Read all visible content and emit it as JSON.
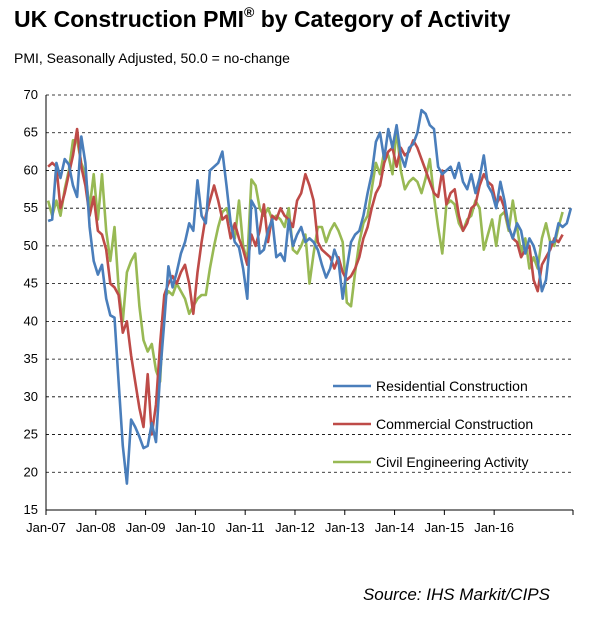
{
  "title": "UK Construction PMI",
  "title_sup": "®",
  "title_rest": " by Category of Activity",
  "subtitle": "PMI, Seasonally Adjusted, 50.0 = no-change",
  "source": "Source: IHS Markit/CIPS",
  "chart_data": {
    "type": "line",
    "xlabel": "",
    "ylabel": "",
    "ylim": [
      15,
      70
    ],
    "yticks": [
      15,
      20,
      25,
      30,
      35,
      40,
      45,
      50,
      55,
      60,
      65,
      70
    ],
    "xtick_labels": [
      "Jan-07",
      "Jan-08",
      "Jan-09",
      "Jan-10",
      "Jan-11",
      "Jan-12",
      "Jan-13",
      "Jan-14",
      "Jan-15",
      "Jan-16"
    ],
    "x_start": "Jan-07",
    "x_end": "Dec-16",
    "grid": "horizontal dashed",
    "legend_position": "bottom-right",
    "series": [
      {
        "name": "Residential Construction",
        "color": "#4a7ebb",
        "values": [
          53.3,
          53.5,
          61.0,
          59.0,
          61.5,
          60.8,
          58.0,
          56.5,
          64.5,
          61.0,
          52.5,
          48.0,
          46.2,
          47.5,
          43.0,
          40.8,
          40.5,
          32.0,
          23.5,
          18.5,
          27.0,
          26.0,
          24.7,
          23.2,
          23.5,
          26.5,
          24.0,
          33.0,
          40.0,
          47.3,
          44.5,
          46.5,
          49.0,
          50.5,
          53.0,
          52.0,
          58.7,
          54.0,
          53.0,
          60.0,
          60.5,
          61.0,
          62.5,
          58.0,
          53.0,
          50.5,
          49.8,
          47.0,
          43.0,
          56.0,
          55.0,
          49.0,
          49.5,
          52.0,
          53.5,
          48.5,
          49.0,
          48.0,
          53.5,
          50.0,
          51.5,
          52.5,
          50.5,
          51.0,
          50.5,
          49.5,
          47.5,
          45.8,
          47.0,
          49.5,
          48.0,
          43.0,
          47.0,
          50.5,
          51.5,
          52.0,
          54.0,
          57.0,
          59.5,
          63.8,
          65.0,
          61.5,
          65.5,
          63.0,
          66.0,
          62.0,
          60.5,
          63.0,
          63.5,
          65.0,
          68.0,
          67.5,
          66.0,
          65.5,
          60.5,
          59.5,
          60.0,
          60.5,
          59.0,
          61.0,
          58.5,
          57.5,
          59.5,
          57.0,
          59.0,
          62.0,
          58.0,
          57.0,
          55.0,
          58.5,
          56.0,
          52.5,
          51.0,
          53.0,
          52.0,
          49.0,
          51.0,
          50.0,
          48.0,
          44.0,
          45.5,
          50.5,
          50.5,
          53.0,
          52.5,
          53.0,
          55.0
        ]
      },
      {
        "name": "Commercial Construction",
        "color": "#be4b48",
        "values": [
          60.5,
          61.0,
          60.5,
          55.0,
          57.0,
          59.5,
          62.0,
          65.5,
          60.5,
          58.0,
          54.0,
          56.5,
          52.0,
          51.5,
          49.5,
          45.0,
          44.5,
          43.5,
          38.5,
          40.0,
          35.5,
          32.0,
          28.5,
          26.0,
          33.0,
          25.0,
          29.0,
          37.0,
          43.5,
          45.0,
          46.0,
          45.0,
          46.5,
          47.5,
          45.0,
          41.0,
          46.5,
          50.5,
          54.0,
          56.0,
          58.0,
          56.0,
          53.5,
          54.0,
          51.0,
          53.0,
          51.0,
          49.5,
          47.5,
          51.5,
          50.0,
          52.0,
          55.5,
          50.5,
          54.0,
          53.5,
          55.0,
          54.0,
          53.5,
          52.5,
          56.0,
          57.0,
          59.5,
          58.0,
          56.0,
          50.5,
          49.5,
          49.0,
          48.5,
          47.0,
          48.5,
          46.5,
          45.5,
          46.0,
          47.0,
          48.5,
          51.0,
          52.5,
          55.0,
          57.0,
          58.0,
          61.0,
          62.5,
          63.0,
          60.5,
          63.0,
          62.0,
          62.5,
          64.0,
          63.0,
          61.5,
          60.0,
          58.5,
          57.0,
          56.5,
          60.0,
          55.5,
          57.0,
          57.5,
          54.0,
          52.0,
          53.0,
          55.0,
          55.5,
          58.0,
          59.5,
          58.5,
          58.0,
          55.5,
          56.5,
          55.0,
          52.5,
          51.0,
          50.5,
          48.5,
          49.5,
          50.0,
          45.5,
          44.0,
          47.5,
          48.5,
          49.5,
          51.0,
          50.5,
          51.5
        ]
      },
      {
        "name": "Civil Engineering Activity",
        "color": "#98b954",
        "values": [
          56.0,
          54.0,
          56.0,
          54.0,
          57.5,
          60.0,
          64.0,
          64.0,
          61.0,
          59.5,
          55.0,
          59.5,
          53.5,
          59.5,
          52.0,
          48.0,
          52.5,
          44.5,
          40.0,
          46.5,
          48.0,
          49.0,
          42.0,
          37.5,
          36.0,
          37.0,
          33.5,
          32.0,
          43.0,
          44.0,
          43.5,
          45.0,
          44.0,
          43.0,
          41.0,
          42.0,
          43.0,
          43.5,
          43.5,
          47.0,
          50.0,
          52.5,
          54.5,
          55.0,
          53.0,
          51.0,
          56.0,
          50.0,
          48.0,
          58.8,
          58.0,
          55.0,
          54.0,
          55.0,
          53.5,
          54.0,
          53.5,
          52.5,
          55.0,
          49.5,
          49.0,
          50.0,
          51.5,
          45.0,
          49.0,
          52.5,
          52.5,
          50.5,
          52.0,
          53.0,
          52.0,
          50.5,
          42.5,
          42.0,
          46.5,
          50.5,
          53.0,
          54.0,
          57.5,
          61.0,
          59.5,
          62.5,
          62.0,
          59.5,
          65.5,
          60.0,
          57.5,
          58.5,
          59.0,
          58.5,
          57.0,
          59.0,
          61.5,
          56.5,
          52.5,
          49.0,
          55.5,
          56.0,
          55.5,
          53.0,
          52.0,
          53.5,
          54.0,
          56.0,
          55.0,
          49.5,
          51.5,
          53.5,
          50.0,
          54.0,
          54.5,
          52.0,
          56.0,
          52.5,
          49.0,
          51.0,
          47.0,
          48.5,
          47.0,
          51.0,
          53.0,
          50.5,
          50.0,
          52.5,
          54.5
        ]
      }
    ]
  }
}
